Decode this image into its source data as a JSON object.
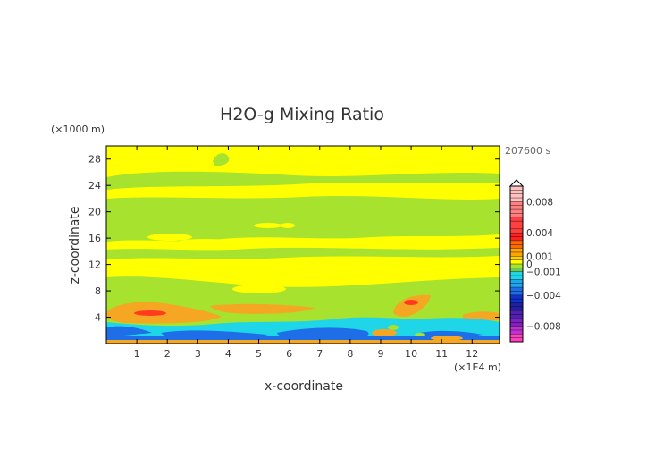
{
  "chart_data": {
    "type": "heatmap",
    "title": "H2O-g Mixing Ratio",
    "xlabel": "x-coordinate",
    "ylabel": "z-coordinate",
    "x_unit": "(×1E4 m)",
    "y_unit": "(×1000 m)",
    "time_label": "207600 s",
    "xlim": [
      0,
      12.9
    ],
    "ylim": [
      0,
      30
    ],
    "x_ticks": [
      "1",
      "2",
      "3",
      "4",
      "5",
      "6",
      "7",
      "8",
      "9",
      "10",
      "11",
      "12"
    ],
    "y_ticks": [
      "4",
      "8",
      "12",
      "16",
      "20",
      "24",
      "28"
    ],
    "colorbar": {
      "labels": [
        "0.008",
        "0.004",
        "0.001",
        "0",
        "−0.001",
        "−0.004",
        "−0.008"
      ],
      "label_values": [
        0.008,
        0.004,
        0.001,
        0,
        -0.001,
        -0.004,
        -0.008
      ],
      "range": [
        -0.01,
        0.01
      ]
    },
    "regions": [
      {
        "name": "background",
        "value": "0 to 0.001",
        "color": "#ffff00"
      },
      {
        "name": "green-bands",
        "value": "0 to -0.001",
        "color": "#a6e22e"
      },
      {
        "name": "orange-layer",
        "value": "0.001 to 0.004",
        "color": "#f5a623"
      },
      {
        "name": "cyan-layer",
        "value": "-0.001 to -0.004",
        "color": "#1fd6e8"
      },
      {
        "name": "blue-layer",
        "value": "-0.004 to -0.006",
        "color": "#1e6ee8"
      }
    ]
  }
}
